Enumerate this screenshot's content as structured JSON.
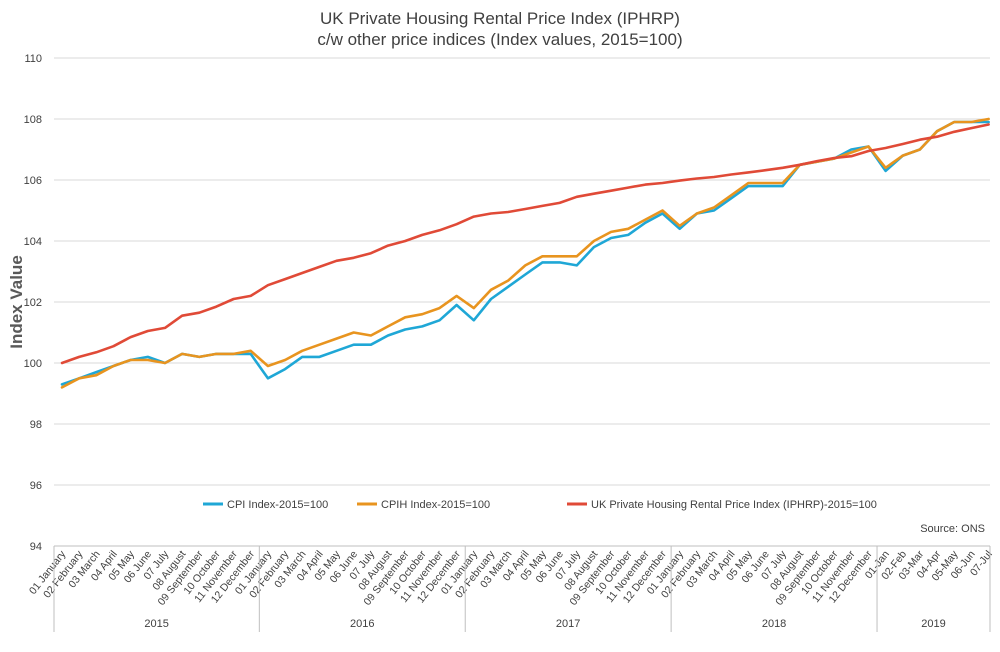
{
  "chart_data": {
    "type": "line",
    "title": "UK Private Housing Rental Price Index (IPHRP)",
    "subtitle": "c/w other price indices (Index values, 2015=100)",
    "ylabel": "Index Value",
    "xlabel": "",
    "ylim": [
      94,
      110
    ],
    "yticks": [
      94,
      96,
      98,
      100,
      102,
      104,
      106,
      108,
      110
    ],
    "grid": true,
    "legend_position": "bottom",
    "source": "Source: ONS",
    "years": [
      {
        "label": "2015",
        "count": 12
      },
      {
        "label": "2016",
        "count": 12
      },
      {
        "label": "2017",
        "count": 12
      },
      {
        "label": "2018",
        "count": 12
      },
      {
        "label": "2019",
        "count": 7
      }
    ],
    "categories": [
      "01 January",
      "02 February",
      "03 March",
      "04 April",
      "05 May",
      "06 June",
      "07 July",
      "08 August",
      "09 September",
      "10 October",
      "11 November",
      "12 December",
      "01 January",
      "02 February",
      "03 March",
      "04 April",
      "05 May",
      "06 June",
      "07 July",
      "08 August",
      "09 September",
      "10 October",
      "11 November",
      "12 December",
      "01 January",
      "02 February",
      "03 March",
      "04 April",
      "05 May",
      "06 June",
      "07 July",
      "08 August",
      "09 September",
      "10 October",
      "11 November",
      "12 December",
      "01 January",
      "02 February",
      "03 March",
      "04 April",
      "05 May",
      "06 June",
      "07 July",
      "08 August",
      "09 September",
      "10 October",
      "11 November",
      "12 December",
      "01-Jan",
      "02-Feb",
      "03-Mar",
      "04-Apr",
      "05-May",
      "06-Jun",
      "07-Jul"
    ],
    "series": [
      {
        "name": "CPI Index-2015=100",
        "color": "#1fa7d6",
        "values": [
          99.3,
          99.5,
          99.7,
          99.9,
          100.1,
          100.2,
          100.0,
          100.3,
          100.2,
          100.3,
          100.3,
          100.3,
          99.5,
          99.8,
          100.2,
          100.2,
          100.4,
          100.6,
          100.6,
          100.9,
          101.1,
          101.2,
          101.4,
          101.9,
          101.4,
          102.1,
          102.5,
          102.9,
          103.3,
          103.3,
          103.2,
          103.8,
          104.1,
          104.2,
          104.6,
          104.9,
          104.4,
          104.9,
          105.0,
          105.4,
          105.8,
          105.8,
          105.8,
          106.5,
          106.6,
          106.7,
          107.0,
          107.1,
          106.3,
          106.8,
          107.0,
          107.6,
          107.9,
          107.9,
          107.9
        ]
      },
      {
        "name": "CPIH Index-2015=100",
        "color": "#e8941f",
        "values": [
          99.2,
          99.5,
          99.6,
          99.9,
          100.1,
          100.1,
          100.0,
          100.3,
          100.2,
          100.3,
          100.3,
          100.4,
          99.9,
          100.1,
          100.4,
          100.6,
          100.8,
          101.0,
          100.9,
          101.2,
          101.5,
          101.6,
          101.8,
          102.2,
          101.8,
          102.4,
          102.7,
          103.2,
          103.5,
          103.5,
          103.5,
          104.0,
          104.3,
          104.4,
          104.7,
          105.0,
          104.5,
          104.9,
          105.1,
          105.5,
          105.9,
          105.9,
          105.9,
          106.5,
          106.6,
          106.7,
          106.9,
          107.1,
          106.4,
          106.8,
          107.0,
          107.6,
          107.9,
          107.9,
          108.0
        ]
      },
      {
        "name": "UK Private Housing Rental Price Index (IPHRP)-2015=100",
        "color": "#e04a37",
        "values": [
          100.0,
          100.2,
          100.35,
          100.55,
          100.85,
          101.05,
          101.15,
          101.55,
          101.65,
          101.85,
          102.1,
          102.2,
          102.55,
          102.75,
          102.95,
          103.15,
          103.35,
          103.45,
          103.6,
          103.85,
          104.0,
          104.2,
          104.35,
          104.55,
          104.8,
          104.9,
          104.95,
          105.05,
          105.15,
          105.25,
          105.45,
          105.55,
          105.65,
          105.75,
          105.85,
          105.9,
          105.98,
          106.05,
          106.1,
          106.18,
          106.25,
          106.32,
          106.4,
          106.5,
          106.62,
          106.72,
          106.78,
          106.95,
          107.05,
          107.18,
          107.32,
          107.42,
          107.58,
          107.7,
          107.82
        ]
      }
    ]
  }
}
